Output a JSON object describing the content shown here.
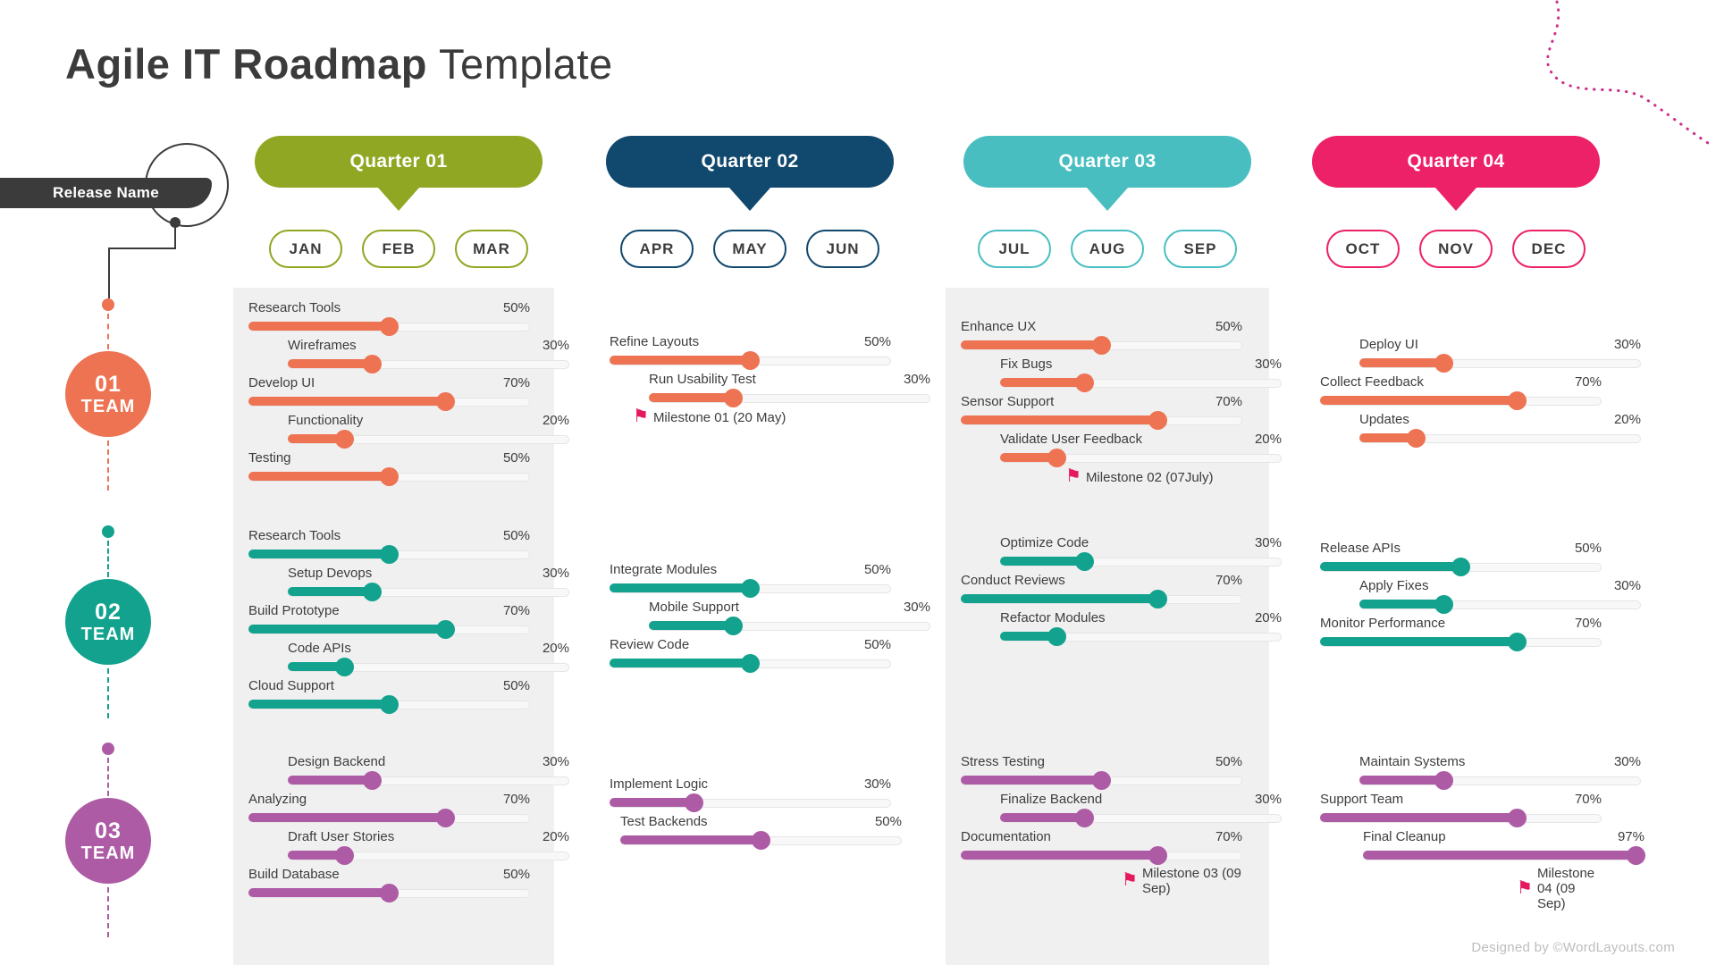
{
  "title": {
    "bold": "Agile IT Roadmap",
    "light": "Template"
  },
  "release_label": "Release Name",
  "footer": "Designed by ©WordLayouts.com",
  "milestone_flag_color": "#e5195e",
  "teams": [
    {
      "number": "01",
      "word": "TEAM",
      "color": "#ed7353"
    },
    {
      "number": "02",
      "word": "TEAM",
      "color": "#12a28e"
    },
    {
      "number": "03",
      "word": "TEAM",
      "color": "#ad5ba5"
    }
  ],
  "quarters": [
    {
      "label": "Quarter 01",
      "color": "#8fa722",
      "months": [
        "JAN",
        "FEB",
        "MAR"
      ]
    },
    {
      "label": "Quarter 02",
      "color": "#11486e",
      "months": [
        "APR",
        "MAY",
        "JUN"
      ]
    },
    {
      "label": "Quarter 03",
      "color": "#49bec1",
      "months": [
        "JUL",
        "AUG",
        "SEP"
      ]
    },
    {
      "label": "Quarter 04",
      "color": "#ec2168",
      "months": [
        "OCT",
        "NOV",
        "DEC"
      ]
    }
  ],
  "cells": [
    {
      "team": 0,
      "quarter": 0,
      "items": [
        {
          "label": "Research Tools",
          "pct": "50%",
          "indent": 0
        },
        {
          "label": "Wireframes",
          "pct": "30%",
          "indent": 44
        },
        {
          "label": "Develop UI",
          "pct": "70%",
          "indent": 0
        },
        {
          "label": "Functionality",
          "pct": "20%",
          "indent": 44
        },
        {
          "label": "Testing",
          "pct": "50%",
          "indent": 0
        }
      ]
    },
    {
      "team": 0,
      "quarter": 1,
      "items": [
        {
          "label": "Refine Layouts",
          "pct": "50%",
          "indent": 0
        },
        {
          "label": "Run Usability Test",
          "pct": "30%",
          "indent": 44
        },
        {
          "milestone": "Milestone 01 (20 May)"
        }
      ]
    },
    {
      "team": 0,
      "quarter": 2,
      "items": [
        {
          "label": "Enhance UX",
          "pct": "50%",
          "indent": 0
        },
        {
          "label": "Fix Bugs",
          "pct": "30%",
          "indent": 44
        },
        {
          "label": "Sensor Support",
          "pct": "70%",
          "indent": 0
        },
        {
          "label": "Validate User Feedback",
          "pct": "20%",
          "indent": 44
        },
        {
          "milestone": "Milestone 02 (07July)"
        }
      ]
    },
    {
      "team": 0,
      "quarter": 3,
      "items": [
        {
          "label": "Deploy UI",
          "pct": "30%",
          "indent": 44
        },
        {
          "label": "Collect Feedback",
          "pct": "70%",
          "indent": 0
        },
        {
          "label": "Updates",
          "pct": "20%",
          "indent": 44
        }
      ]
    },
    {
      "team": 1,
      "quarter": 0,
      "items": [
        {
          "label": "Research Tools",
          "pct": "50%",
          "indent": 0
        },
        {
          "label": "Setup Devops",
          "pct": "30%",
          "indent": 44
        },
        {
          "label": "Build Prototype",
          "pct": "70%",
          "indent": 0
        },
        {
          "label": "Code APIs",
          "pct": "20%",
          "indent": 44
        },
        {
          "label": "Cloud Support",
          "pct": "50%",
          "indent": 0
        }
      ]
    },
    {
      "team": 1,
      "quarter": 1,
      "items": [
        {
          "label": "Integrate Modules",
          "pct": "50%",
          "indent": 0
        },
        {
          "label": "Mobile Support",
          "pct": "30%",
          "indent": 44
        },
        {
          "label": "Review Code",
          "pct": "50%",
          "indent": 0
        }
      ]
    },
    {
      "team": 1,
      "quarter": 2,
      "items": [
        {
          "label": "Optimize Code",
          "pct": "30%",
          "indent": 44
        },
        {
          "label": "Conduct Reviews",
          "pct": "70%",
          "indent": 0
        },
        {
          "label": "Refactor Modules",
          "pct": "20%",
          "indent": 44
        }
      ]
    },
    {
      "team": 1,
      "quarter": 3,
      "items": [
        {
          "label": "Release APIs",
          "pct": "50%",
          "indent": 0
        },
        {
          "label": "Apply Fixes",
          "pct": "30%",
          "indent": 44
        },
        {
          "label": "Monitor Performance",
          "pct": "70%",
          "indent": 0
        }
      ]
    },
    {
      "team": 2,
      "quarter": 0,
      "items": [
        {
          "label": "Design Backend",
          "pct": "30%",
          "indent": 44
        },
        {
          "label": "Analyzing",
          "pct": "70%",
          "indent": 0
        },
        {
          "label": "Draft User Stories",
          "pct": "20%",
          "indent": 44
        },
        {
          "label": "Build Database",
          "pct": "50%",
          "indent": 0
        }
      ]
    },
    {
      "team": 2,
      "quarter": 1,
      "items": [
        {
          "label": "Implement Logic",
          "pct": "30%",
          "indent": 0
        },
        {
          "label": "Test Backends",
          "pct": "50%",
          "indent": 12
        }
      ]
    },
    {
      "team": 2,
      "quarter": 2,
      "items": [
        {
          "label": "Stress Testing",
          "pct": "50%",
          "indent": 0
        },
        {
          "label": "Finalize Backend",
          "pct": "30%",
          "indent": 44
        },
        {
          "label": "Documentation",
          "pct": "70%",
          "indent": 0
        },
        {
          "milestone": "Milestone 03 (09 Sep)"
        }
      ]
    },
    {
      "team": 2,
      "quarter": 3,
      "items": [
        {
          "label": "Maintain Systems",
          "pct": "30%",
          "indent": 44
        },
        {
          "label": "Support Team",
          "pct": "70%",
          "indent": 0
        },
        {
          "label": "Final Cleanup",
          "pct": "97%",
          "indent": 48
        },
        {
          "milestone": "Milestone 04 (09 Sep)"
        }
      ]
    }
  ]
}
